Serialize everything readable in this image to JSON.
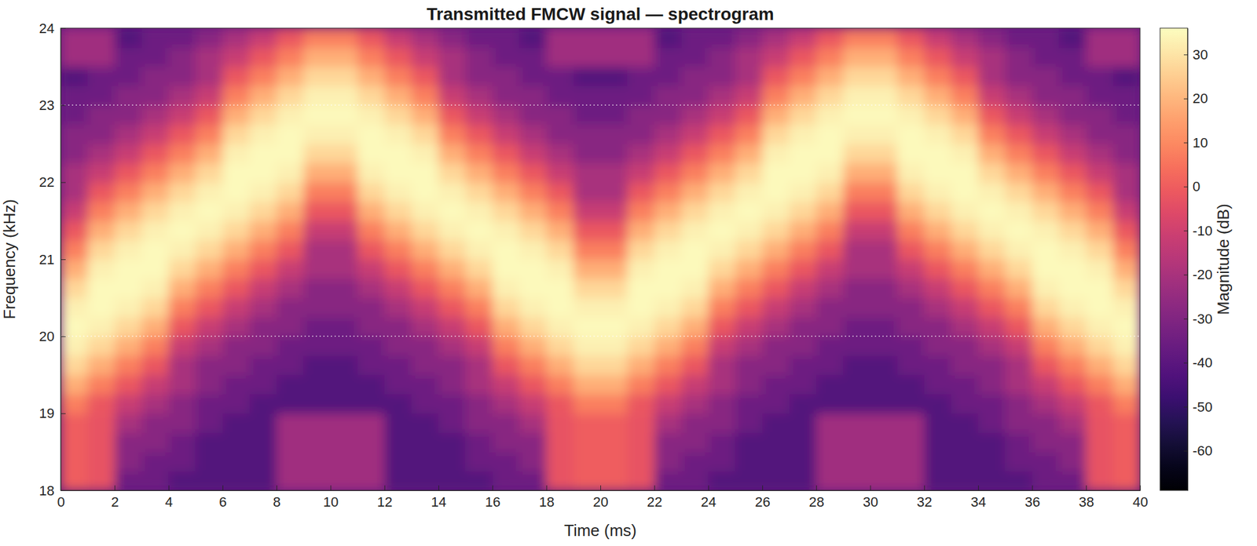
{
  "chart_data": {
    "type": "heatmap",
    "title": "Transmitted FMCW signal — spectrogram",
    "x_label": "Time (ms)",
    "y_label": "Frequency (kHz)",
    "z_label": "Magnitude (dB)",
    "xlim": [
      0,
      40
    ],
    "xticks": [
      0,
      2,
      4,
      6,
      8,
      10,
      12,
      14,
      16,
      18,
      20,
      22,
      24,
      26,
      28,
      30,
      32,
      34,
      36,
      38,
      40
    ],
    "ylim": [
      18,
      24
    ],
    "yticks": [
      18,
      19,
      20,
      21,
      22,
      23,
      24
    ],
    "zlim": [
      -69,
      36
    ],
    "zticks": [
      -60,
      -50,
      -40,
      -30,
      -20,
      -10,
      0,
      10,
      20,
      30
    ],
    "hlines": [
      20,
      23
    ],
    "x": [
      0.5,
      1.5,
      2.5,
      3.5,
      4.5,
      5.5,
      6.5,
      7.5,
      8.5,
      9.5,
      10.5,
      11.5,
      12.5,
      13.5,
      14.5,
      15.5,
      16.5,
      17.5,
      18.5,
      19.5,
      20.5,
      21.5,
      22.5,
      23.5,
      24.5,
      25.5,
      26.5,
      27.5,
      28.5,
      29.5,
      30.5,
      31.5,
      32.5,
      33.5,
      34.5,
      35.5,
      36.5,
      37.5,
      38.5,
      39.5
    ],
    "y": [
      18.125,
      18.375,
      18.625,
      18.875,
      19.125,
      19.375,
      19.625,
      19.875,
      20.125,
      20.375,
      20.625,
      20.875,
      21.125,
      21.375,
      21.625,
      21.875,
      22.125,
      22.375,
      22.625,
      22.875,
      23.125,
      23.375,
      23.625,
      23.875
    ],
    "z": [
      [
        0,
        -3,
        -35,
        -35,
        -42,
        -42,
        -42,
        -42,
        -22,
        -22,
        -22,
        -22,
        -42,
        -42,
        -42,
        -42,
        -35,
        -35,
        -3,
        0,
        0,
        -3,
        -35,
        -35,
        -42,
        -42,
        -42,
        -42,
        -22,
        -22,
        -22,
        -22,
        -42,
        -42,
        -42,
        -42,
        -35,
        -35,
        -3,
        0
      ],
      [
        0,
        -3,
        -28,
        -35,
        -35,
        -42,
        -42,
        -42,
        -22,
        -22,
        -22,
        -22,
        -42,
        -42,
        -42,
        -35,
        -35,
        -28,
        -3,
        0,
        0,
        -3,
        -28,
        -35,
        -35,
        -42,
        -42,
        -42,
        -22,
        -22,
        -22,
        -22,
        -42,
        -42,
        -42,
        -35,
        -35,
        -28,
        -3,
        0
      ],
      [
        0,
        -3,
        -28,
        -28,
        -35,
        -42,
        -42,
        -42,
        -22,
        -22,
        -22,
        -22,
        -42,
        -42,
        -42,
        -35,
        -28,
        -28,
        -3,
        0,
        0,
        -3,
        -28,
        -28,
        -35,
        -42,
        -42,
        -42,
        -22,
        -22,
        -22,
        -22,
        -42,
        -42,
        -42,
        -35,
        -28,
        -28,
        -3,
        0
      ],
      [
        0,
        -3,
        -20,
        -28,
        -28,
        -35,
        -42,
        -42,
        -22,
        -22,
        -22,
        -22,
        -42,
        -42,
        -35,
        -28,
        -28,
        -20,
        -3,
        0,
        0,
        -3,
        -20,
        -28,
        -28,
        -35,
        -42,
        -42,
        -22,
        -22,
        -22,
        -22,
        -42,
        -42,
        -35,
        -28,
        -28,
        -20,
        -3,
        0
      ],
      [
        8,
        -2,
        -12,
        -20,
        -28,
        -35,
        -35,
        -42,
        -42,
        -42,
        -42,
        -42,
        -42,
        -35,
        -35,
        -28,
        -20,
        -12,
        -2,
        8,
        8,
        -2,
        -12,
        -20,
        -28,
        -35,
        -35,
        -42,
        -42,
        -42,
        -42,
        -42,
        -42,
        -35,
        -35,
        -28,
        -20,
        -12,
        -2,
        8
      ],
      [
        18,
        8,
        -2,
        -12,
        -20,
        -28,
        -35,
        -35,
        -42,
        -42,
        -42,
        -42,
        -35,
        -35,
        -28,
        -20,
        -12,
        -2,
        8,
        18,
        18,
        8,
        -2,
        -12,
        -20,
        -28,
        -35,
        -35,
        -42,
        -42,
        -42,
        -42,
        -35,
        -35,
        -28,
        -20,
        -12,
        -2,
        8,
        18
      ],
      [
        27,
        18,
        8,
        -2,
        -20,
        -28,
        -28,
        -35,
        -35,
        -42,
        -42,
        -35,
        -35,
        -28,
        -28,
        -20,
        -2,
        8,
        18,
        27,
        27,
        18,
        8,
        -2,
        -20,
        -28,
        -28,
        -35,
        -35,
        -42,
        -42,
        -35,
        -35,
        -28,
        -28,
        -20,
        -2,
        8,
        18,
        27
      ],
      [
        33,
        27,
        18,
        8,
        -12,
        -20,
        -28,
        -28,
        -35,
        -35,
        -35,
        -35,
        -28,
        -28,
        -20,
        -12,
        8,
        18,
        27,
        33,
        33,
        27,
        18,
        8,
        -12,
        -20,
        -28,
        -28,
        -35,
        -35,
        -35,
        -35,
        -28,
        -28,
        -20,
        -12,
        8,
        18,
        27,
        33
      ],
      [
        35,
        33,
        27,
        18,
        -2,
        -12,
        -20,
        -28,
        -28,
        -35,
        -35,
        -28,
        -28,
        -20,
        -12,
        -2,
        18,
        27,
        33,
        35,
        35,
        33,
        27,
        18,
        -2,
        -12,
        -20,
        -28,
        -28,
        -35,
        -35,
        -28,
        -28,
        -20,
        -12,
        -2,
        18,
        27,
        33,
        35
      ],
      [
        33,
        35,
        33,
        27,
        8,
        -2,
        -12,
        -20,
        -28,
        -28,
        -28,
        -28,
        -20,
        -12,
        -2,
        8,
        27,
        33,
        35,
        33,
        33,
        35,
        33,
        27,
        8,
        -2,
        -12,
        -20,
        -28,
        -28,
        -28,
        -28,
        -20,
        -12,
        -2,
        8,
        27,
        33,
        35,
        33
      ],
      [
        27,
        35,
        35,
        33,
        18,
        8,
        -2,
        -12,
        -20,
        -28,
        -28,
        -20,
        -12,
        -2,
        8,
        18,
        33,
        35,
        35,
        27,
        27,
        35,
        35,
        33,
        18,
        8,
        -2,
        -12,
        -20,
        -28,
        -28,
        -20,
        -12,
        -2,
        8,
        18,
        33,
        35,
        35,
        27
      ],
      [
        18,
        33,
        35,
        35,
        27,
        18,
        8,
        -2,
        -12,
        -20,
        -20,
        -12,
        -2,
        8,
        18,
        27,
        35,
        35,
        33,
        18,
        18,
        33,
        35,
        35,
        27,
        18,
        8,
        -2,
        -12,
        -20,
        -20,
        -12,
        -2,
        8,
        18,
        27,
        35,
        35,
        33,
        18
      ],
      [
        8,
        27,
        33,
        35,
        33,
        27,
        18,
        8,
        -2,
        -20,
        -20,
        -2,
        8,
        18,
        27,
        33,
        35,
        33,
        27,
        8,
        8,
        27,
        33,
        35,
        33,
        27,
        18,
        8,
        -2,
        -20,
        -20,
        -2,
        8,
        18,
        27,
        33,
        35,
        33,
        27,
        8
      ],
      [
        -2,
        18,
        27,
        33,
        35,
        33,
        27,
        18,
        8,
        -12,
        -12,
        8,
        18,
        27,
        33,
        35,
        33,
        27,
        18,
        -2,
        -2,
        18,
        27,
        33,
        35,
        33,
        27,
        18,
        8,
        -12,
        -12,
        8,
        18,
        27,
        33,
        35,
        33,
        27,
        18,
        -2
      ],
      [
        -12,
        8,
        18,
        27,
        33,
        35,
        33,
        27,
        18,
        -2,
        -2,
        18,
        27,
        33,
        35,
        33,
        27,
        18,
        8,
        -12,
        -12,
        8,
        18,
        27,
        33,
        35,
        33,
        27,
        18,
        -2,
        -2,
        18,
        27,
        33,
        35,
        33,
        27,
        18,
        8,
        -12
      ],
      [
        -20,
        -2,
        8,
        18,
        27,
        33,
        35,
        33,
        27,
        8,
        8,
        27,
        33,
        35,
        33,
        27,
        18,
        8,
        -2,
        -20,
        -20,
        -2,
        8,
        18,
        27,
        33,
        35,
        33,
        27,
        8,
        8,
        27,
        33,
        35,
        33,
        27,
        18,
        8,
        -2,
        -20
      ],
      [
        -20,
        -12,
        -2,
        8,
        18,
        27,
        35,
        35,
        33,
        18,
        18,
        33,
        35,
        35,
        27,
        18,
        8,
        -2,
        -12,
        -20,
        -20,
        -12,
        -2,
        8,
        18,
        27,
        35,
        35,
        33,
        18,
        18,
        33,
        35,
        35,
        27,
        18,
        8,
        -2,
        -12,
        -20
      ],
      [
        -28,
        -20,
        -12,
        -2,
        8,
        18,
        33,
        35,
        35,
        27,
        27,
        35,
        35,
        33,
        18,
        8,
        -2,
        -12,
        -20,
        -28,
        -28,
        -20,
        -12,
        -2,
        8,
        18,
        33,
        35,
        35,
        27,
        27,
        35,
        35,
        33,
        18,
        8,
        -2,
        -12,
        -20,
        -28
      ],
      [
        -28,
        -28,
        -20,
        -12,
        -2,
        8,
        27,
        33,
        35,
        33,
        33,
        35,
        33,
        27,
        8,
        -2,
        -12,
        -20,
        -28,
        -28,
        -28,
        -28,
        -20,
        -12,
        -2,
        8,
        27,
        33,
        35,
        33,
        33,
        35,
        33,
        27,
        8,
        -2,
        -12,
        -20,
        -28,
        -28
      ],
      [
        -35,
        -28,
        -28,
        -20,
        -12,
        -2,
        18,
        27,
        33,
        35,
        35,
        33,
        27,
        18,
        -2,
        -12,
        -20,
        -28,
        -28,
        -35,
        -35,
        -28,
        -28,
        -20,
        -12,
        -2,
        18,
        27,
        33,
        35,
        35,
        33,
        27,
        18,
        -2,
        -12,
        -20,
        -28,
        -28,
        -35
      ],
      [
        -35,
        -35,
        -28,
        -28,
        -20,
        -12,
        8,
        18,
        27,
        33,
        33,
        27,
        18,
        8,
        -12,
        -20,
        -28,
        -28,
        -35,
        -35,
        -35,
        -35,
        -28,
        -28,
        -20,
        -12,
        8,
        18,
        27,
        33,
        33,
        27,
        18,
        8,
        -12,
        -20,
        -28,
        -28,
        -35,
        -35
      ],
      [
        -42,
        -35,
        -35,
        -28,
        -28,
        -20,
        -2,
        8,
        18,
        27,
        27,
        18,
        8,
        -2,
        -20,
        -28,
        -28,
        -35,
        -35,
        -42,
        -42,
        -35,
        -35,
        -28,
        -28,
        -20,
        -2,
        8,
        18,
        27,
        27,
        18,
        8,
        -2,
        -20,
        -28,
        -28,
        -35,
        -35,
        -42
      ],
      [
        -22,
        -22,
        -35,
        -35,
        -28,
        -20,
        -12,
        -2,
        8,
        18,
        18,
        8,
        -2,
        -12,
        -20,
        -28,
        -35,
        -35,
        -22,
        -22,
        -22,
        -22,
        -35,
        -35,
        -28,
        -20,
        -12,
        -2,
        8,
        18,
        18,
        8,
        -2,
        -12,
        -20,
        -28,
        -35,
        -35,
        -22,
        -22
      ],
      [
        -22,
        -22,
        -42,
        -35,
        -35,
        -28,
        -20,
        -12,
        -2,
        8,
        8,
        -2,
        -12,
        -20,
        -28,
        -35,
        -35,
        -42,
        -22,
        -22,
        -22,
        -22,
        -42,
        -35,
        -35,
        -28,
        -20,
        -12,
        -2,
        8,
        8,
        -2,
        -12,
        -20,
        -28,
        -35,
        -35,
        -42,
        -22,
        -22
      ]
    ]
  }
}
